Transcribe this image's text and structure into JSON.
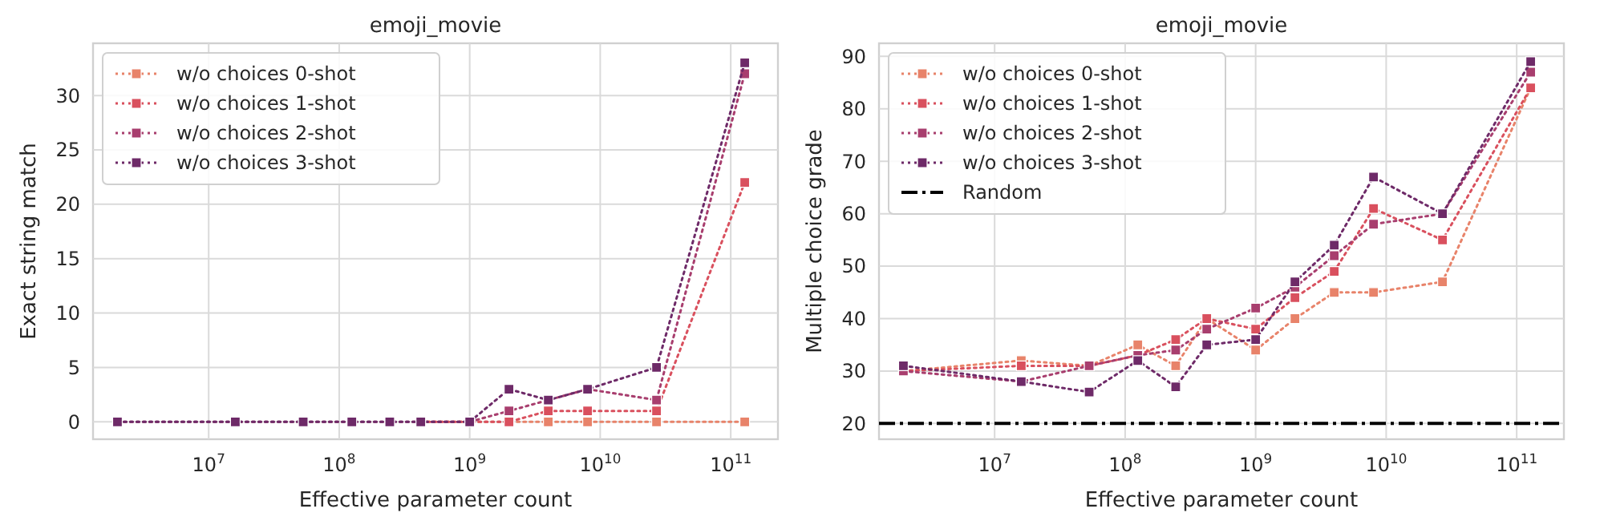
{
  "chart_data": [
    {
      "type": "line",
      "title": "emoji_movie",
      "xlabel": "Effective parameter count",
      "ylabel": "Exact string match",
      "log": "x",
      "grid": true,
      "legend": "top left",
      "marker": "square",
      "line_style": "dotted",
      "x": [
        2000000,
        16000000,
        53000000,
        125000000,
        244000000,
        422000000,
        1000000000,
        2000000000,
        4000000000,
        8000000000,
        27000000000,
        128000000000
      ],
      "xlim": [
        1300000,
        230000000000
      ],
      "xticks": [
        {
          "value": 10000000,
          "label": "10$^{7}$"
        },
        {
          "value": 100000000,
          "label": "10$^{8}$"
        },
        {
          "value": 1000000000,
          "label": "10$^{9}$"
        },
        {
          "value": 10000000000,
          "label": "10$^{10}$"
        },
        {
          "value": 100000000000,
          "label": "10$^{11}$"
        }
      ],
      "ylim": [
        -1.6,
        34.8
      ],
      "yticks": [
        0,
        5,
        10,
        15,
        20,
        25,
        30
      ],
      "series": [
        {
          "name": "w/o choices 0-shot",
          "color": "#e8836a",
          "values": [
            null,
            null,
            null,
            null,
            null,
            0,
            0,
            0,
            0,
            0,
            0,
            0
          ]
        },
        {
          "name": "w/o choices 1-shot",
          "color": "#d9505e",
          "values": [
            null,
            null,
            null,
            null,
            null,
            0,
            0,
            0,
            1,
            1,
            1,
            22
          ]
        },
        {
          "name": "w/o choices 2-shot",
          "color": "#a83e6e",
          "values": [
            0,
            0,
            0,
            0,
            0,
            0,
            0,
            1,
            2,
            3,
            2,
            32
          ]
        },
        {
          "name": "w/o choices 3-shot",
          "color": "#6e2a68",
          "values": [
            0,
            0,
            0,
            0,
            0,
            0,
            0,
            3,
            2,
            3,
            5,
            33
          ]
        }
      ]
    },
    {
      "type": "line",
      "title": "emoji_movie",
      "xlabel": "Effective parameter count",
      "ylabel": "Multiple choice grade",
      "log": "x",
      "grid": true,
      "legend": "top left",
      "marker": "square",
      "line_style": "dotted",
      "x": [
        2000000,
        16000000,
        53000000,
        125000000,
        244000000,
        422000000,
        1000000000,
        2000000000,
        4000000000,
        8000000000,
        27000000000,
        128000000000
      ],
      "xlim": [
        1300000,
        230000000000
      ],
      "xticks": [
        {
          "value": 10000000,
          "label": "10$^{7}$"
        },
        {
          "value": 100000000,
          "label": "10$^{8}$"
        },
        {
          "value": 1000000000,
          "label": "10$^{9}$"
        },
        {
          "value": 10000000000,
          "label": "10$^{10}$"
        },
        {
          "value": 100000000000,
          "label": "10$^{11}$"
        }
      ],
      "ylim": [
        17,
        92.5
      ],
      "yticks": [
        20,
        30,
        40,
        50,
        60,
        70,
        80,
        90
      ],
      "series": [
        {
          "name": "w/o choices 0-shot",
          "color": "#e8836a",
          "values": [
            30,
            32,
            31,
            35,
            31,
            40,
            34,
            40,
            45,
            45,
            47,
            84
          ]
        },
        {
          "name": "w/o choices 1-shot",
          "color": "#d9505e",
          "values": [
            30,
            31,
            31,
            33,
            36,
            40,
            38,
            44,
            49,
            61,
            55,
            84
          ]
        },
        {
          "name": "w/o choices 2-shot",
          "color": "#a83e6e",
          "values": [
            30,
            28,
            31,
            33,
            34,
            38,
            42,
            46,
            52,
            58,
            60,
            87
          ]
        },
        {
          "name": "w/o choices 3-shot",
          "color": "#6e2a68",
          "values": [
            31,
            28,
            26,
            32,
            27,
            35,
            36,
            47,
            54,
            67,
            60,
            89
          ]
        }
      ],
      "ref_lines": [
        {
          "axis": "y",
          "value": 20,
          "label": "Random",
          "color": "#000000",
          "line_style": "dashdot"
        }
      ]
    }
  ]
}
